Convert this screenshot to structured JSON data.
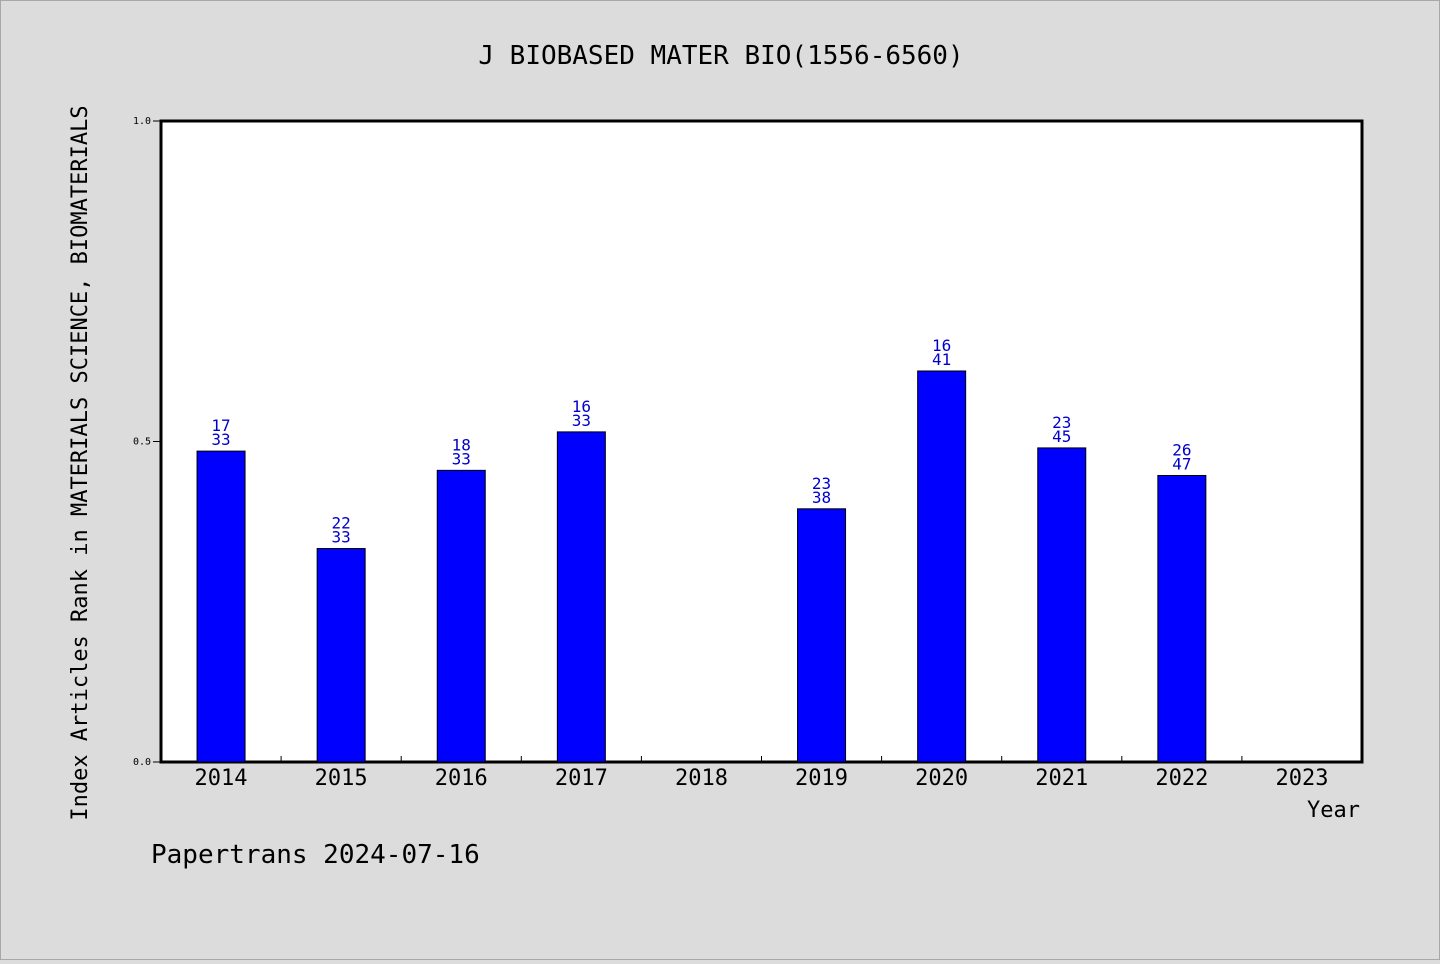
{
  "chart_data": {
    "type": "bar",
    "title": "J BIOBASED MATER BIO(1556-6560)",
    "xlabel": "Year",
    "ylabel": "Index Articles Rank in MATERIALS SCIENCE, BIOMATERIALS",
    "ylim": [
      0,
      1
    ],
    "yticks": [
      "0.0",
      "0.5",
      "1.0"
    ],
    "categories": [
      "2014",
      "2015",
      "2016",
      "2017",
      "2018",
      "2019",
      "2020",
      "2021",
      "2022",
      "2023"
    ],
    "values": [
      0.485,
      0.333,
      0.455,
      0.515,
      null,
      0.395,
      0.61,
      0.49,
      0.447,
      null
    ],
    "labels_top": [
      "17",
      "22",
      "18",
      "16",
      "",
      "23",
      "16",
      "23",
      "26",
      ""
    ],
    "labels_bottom": [
      "33",
      "33",
      "33",
      "33",
      "",
      "38",
      "41",
      "45",
      "47",
      ""
    ],
    "grid": false,
    "colors": {
      "bar": "#0000ff",
      "label": "#0000cc",
      "plot_bg": "#ffffff",
      "page_bg": "#dcdcdc"
    }
  },
  "footer": {
    "text": "Papertrans 2024-07-16"
  }
}
